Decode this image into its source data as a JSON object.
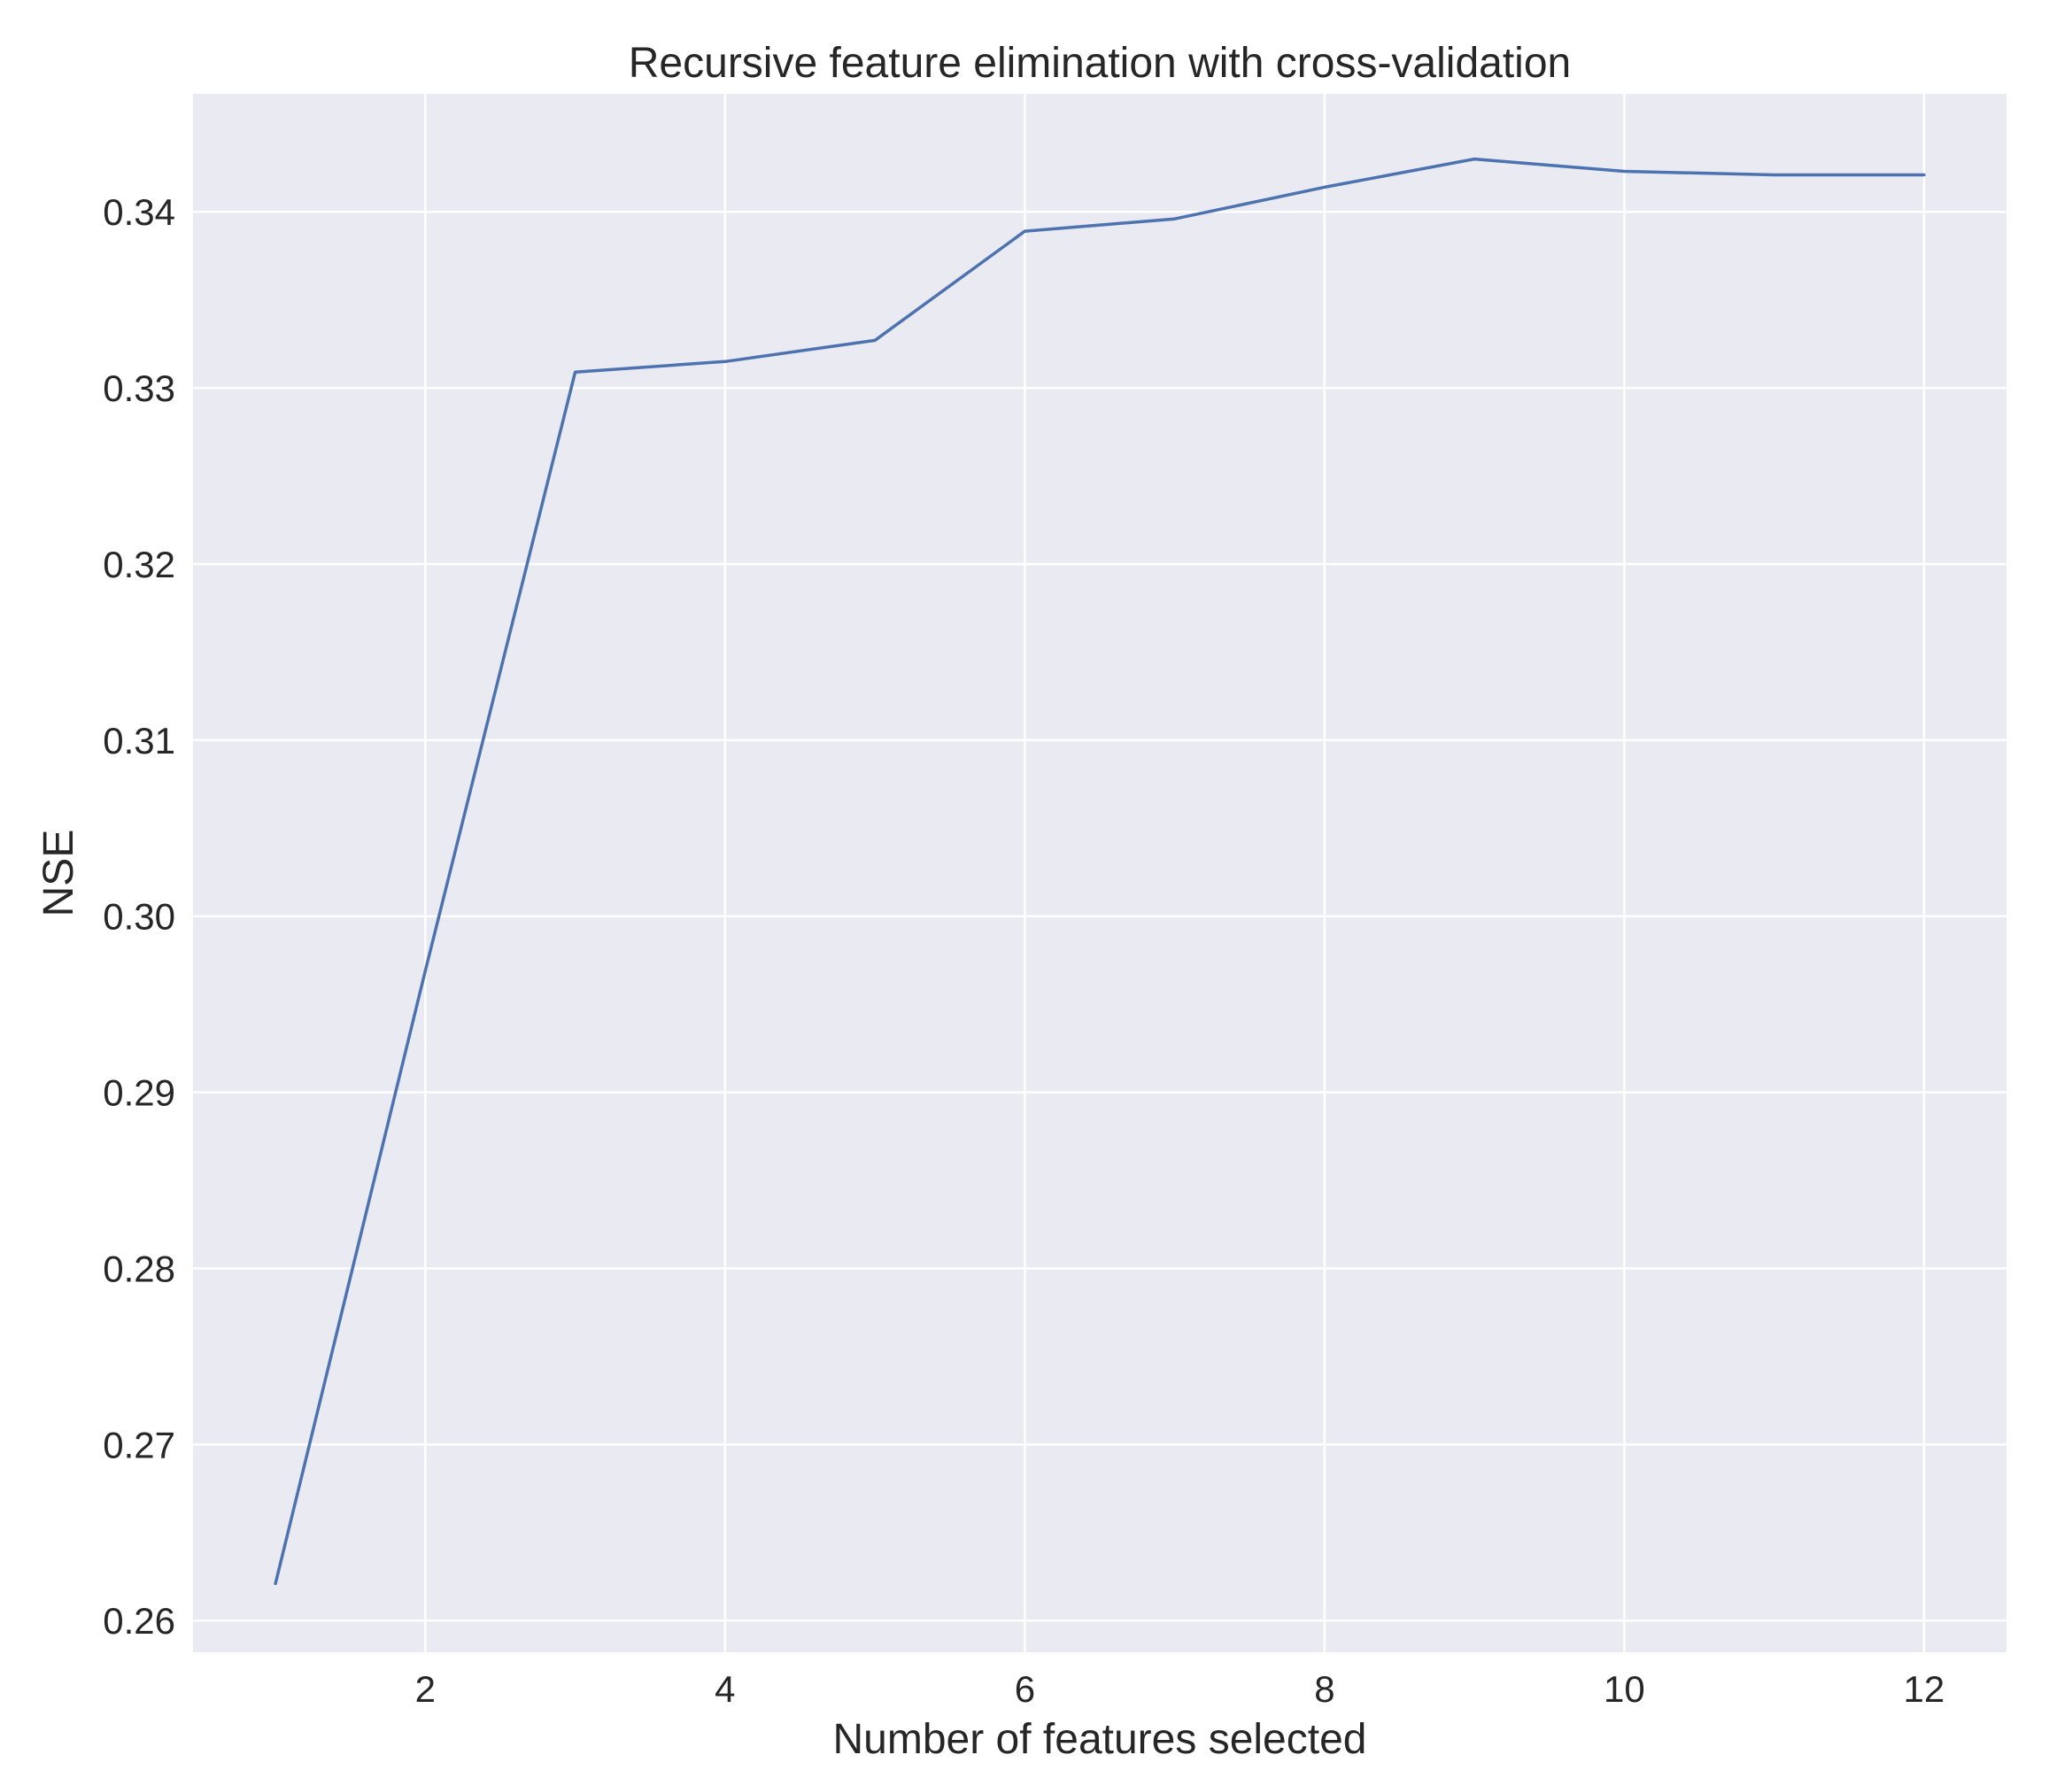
{
  "chart_data": {
    "type": "line",
    "title": "Recursive feature elimination with cross-validation",
    "xlabel": "Number of features selected",
    "ylabel": "NSE",
    "x": [
      1,
      2,
      3,
      4,
      5,
      6,
      7,
      8,
      9,
      10,
      11,
      12
    ],
    "series": [
      {
        "values": [
          0.2621,
          0.2969,
          0.3309,
          0.3315,
          0.3327,
          0.3389,
          0.3396,
          0.3414,
          0.343,
          0.3423,
          0.3421,
          0.3421
        ],
        "color": "#4c72b0"
      }
    ],
    "xlim": [
      0.45,
      12.55
    ],
    "ylim": [
      0.2582,
      0.3467
    ],
    "xticks": [
      2,
      4,
      6,
      8,
      10,
      12
    ],
    "xtick_labels": [
      "2",
      "4",
      "6",
      "8",
      "10",
      "12"
    ],
    "yticks": [
      0.26,
      0.27,
      0.28,
      0.29,
      0.3,
      0.31,
      0.32,
      0.33,
      0.34
    ],
    "ytick_labels": [
      "0.26",
      "0.27",
      "0.28",
      "0.29",
      "0.30",
      "0.31",
      "0.32",
      "0.33",
      "0.34"
    ],
    "grid": true,
    "legend": "none",
    "style": {
      "background": "#eaeaf2",
      "grid_color": "#ffffff",
      "text_color": "#262626"
    }
  }
}
